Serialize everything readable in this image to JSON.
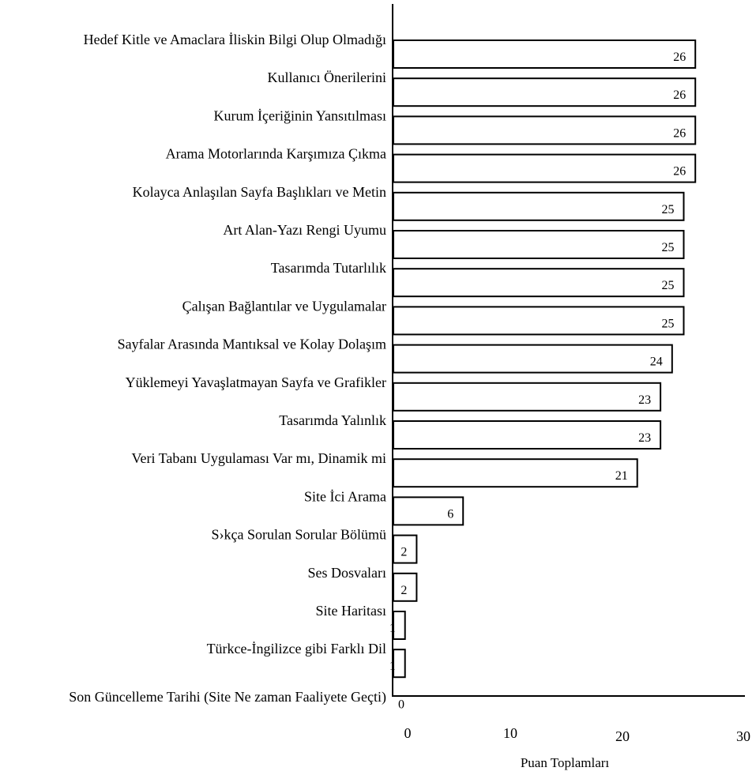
{
  "chart_data": {
    "type": "bar",
    "orientation": "horizontal",
    "categories": [
      "Hedef Kitle ve Amaclara İliskin Bilgi Olup Olmadığı",
      "Kullanıcı Önerilerini",
      "Kurum İçeriğinin Yansıtılması",
      "Arama Motorlarında Karşımıza Çıkma",
      "Kolayca Anlaşılan Sayfa Başlıkları ve Metin",
      "Art Alan-Yazı Rengi Uyumu",
      "Tasarımda Tutarlılık",
      "Çalışan Bağlantılar ve Uygulamalar",
      "Sayfalar Arasında Mantıksal ve Kolay Dolaşım",
      "Yüklemeyi Yavaşlatmayan Sayfa ve Grafikler",
      "Tasarımda Yalınlık",
      "Veri Tabanı Uygulaması Var mı, Dinamik mi",
      "Site İci Arama",
      "S›kça Sorulan Sorular Bölümü",
      "Ses Dosvaları",
      "Site Haritası",
      "Türkce-İngilizce gibi Farklı Dil",
      "Son Güncelleme Tarihi (Site Ne zaman Faaliyete Geçti)"
    ],
    "values": [
      26,
      26,
      26,
      26,
      25,
      25,
      25,
      25,
      24,
      23,
      23,
      21,
      6,
      2,
      2,
      1,
      1,
      0
    ],
    "xlabel": "Puan Toplamları",
    "ylabel": "",
    "xlim": [
      0,
      30
    ],
    "xticks": [
      "0",
      "10",
      "20",
      "30"
    ],
    "grid": false,
    "legend": "none",
    "bar_fill": "#ffffff",
    "bar_stroke": "#000000"
  }
}
